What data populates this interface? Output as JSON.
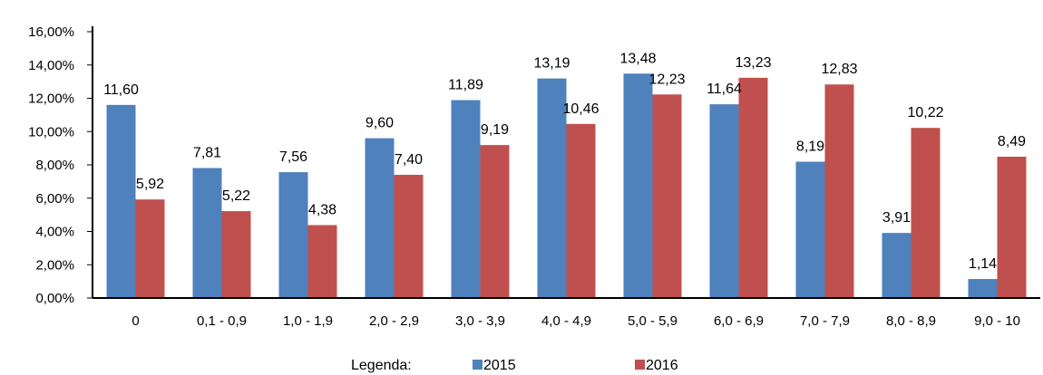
{
  "chart_data": {
    "type": "bar",
    "categories": [
      "0",
      "0,1 - 0,9",
      "1,0 - 1,9",
      "2,0 - 2,9",
      "3,0 - 3,9",
      "4,0 - 4,9",
      "5,0 - 5,9",
      "6,0 - 6,9",
      "7,0 - 7,9",
      "8,0 - 8,9",
      "9,0 - 10"
    ],
    "series": [
      {
        "name": "2015",
        "color": "#4f81bd",
        "values": [
          11.6,
          7.81,
          7.56,
          9.6,
          11.89,
          13.19,
          13.48,
          11.64,
          8.19,
          3.91,
          1.14
        ],
        "labels": [
          "11,60",
          "7,81",
          "7,56",
          "9,60",
          "11,89",
          "13,19",
          "13,48",
          "11,64",
          "8,19",
          "3,91",
          "1,14"
        ]
      },
      {
        "name": "2016",
        "color": "#c0504d",
        "values": [
          5.92,
          5.22,
          4.38,
          7.4,
          9.19,
          10.46,
          12.23,
          13.23,
          12.83,
          10.22,
          8.49
        ],
        "labels": [
          "5,92",
          "5,22",
          "4,38",
          "7,40",
          "9,19",
          "10,46",
          "12,23",
          "13,23",
          "12,83",
          "10,22",
          "8,49"
        ]
      }
    ],
    "ylim": [
      0,
      16
    ],
    "yticks": [
      0,
      2,
      4,
      6,
      8,
      10,
      12,
      14,
      16
    ],
    "ytick_labels": [
      "0,00%",
      "2,00%",
      "4,00%",
      "6,00%",
      "8,00%",
      "10,00%",
      "12,00%",
      "14,00%",
      "16,00%"
    ],
    "legend": {
      "title": "Legenda:",
      "position": "bottom"
    },
    "grid": false
  }
}
